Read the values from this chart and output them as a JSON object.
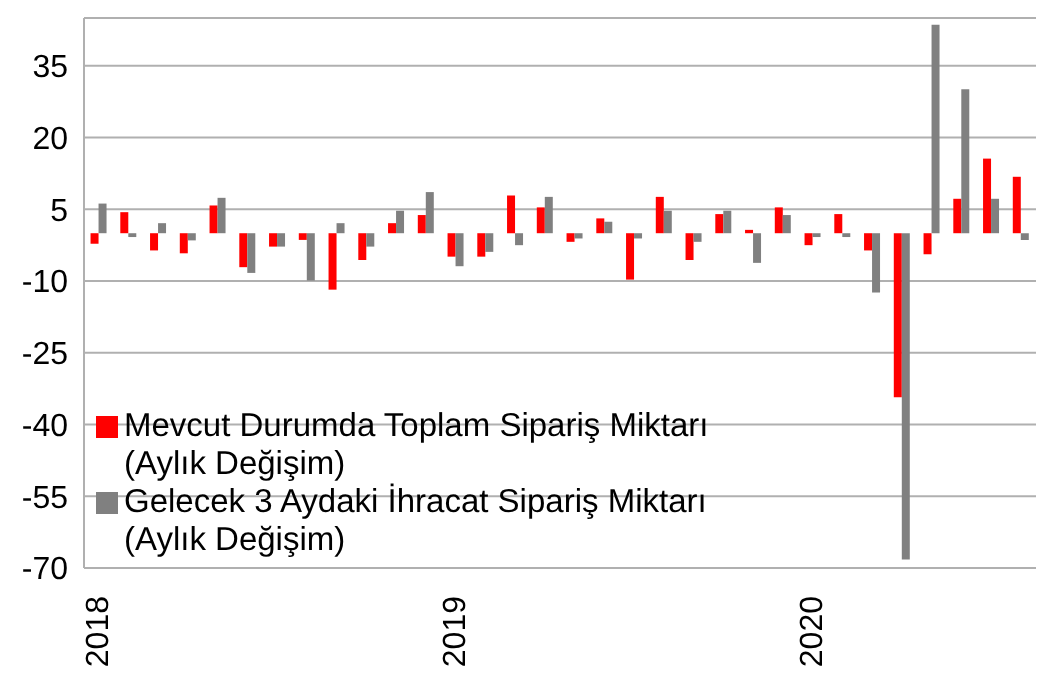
{
  "chart_data": {
    "type": "bar",
    "categories": [
      "2018",
      null,
      null,
      null,
      null,
      null,
      null,
      null,
      null,
      null,
      null,
      null,
      "2019",
      null,
      null,
      null,
      null,
      null,
      null,
      null,
      null,
      null,
      null,
      null,
      "2020",
      null,
      null,
      null,
      null,
      null,
      null,
      null
    ],
    "series": [
      {
        "name": "Mevcut Durumda Toplam Sipariş Miktarı (Aylık Değişim)",
        "color": "#ff0000",
        "values": [
          -2.2,
          4.4,
          -3.6,
          -4.2,
          5.8,
          -7.1,
          -2.8,
          -1.4,
          -11.8,
          -5.6,
          2.1,
          3.8,
          -4.9,
          -4.9,
          7.9,
          5.4,
          -1.8,
          3.1,
          -9.7,
          7.6,
          -5.6,
          4.0,
          0.7,
          5.4,
          -2.5,
          4.0,
          -3.6,
          -34.3,
          -4.4,
          7.2,
          15.6,
          11.8
        ]
      },
      {
        "name": "Gelecek 3 Aydaki İhracat Sipariş Miktarı (Aylık Değişim)",
        "color": "#808080",
        "values": [
          6.2,
          -0.8,
          2.1,
          -1.5,
          7.4,
          -8.3,
          -2.8,
          -9.9,
          2.1,
          -2.8,
          4.7,
          8.6,
          -6.9,
          -3.9,
          -2.5,
          7.6,
          -1.1,
          2.4,
          -1.1,
          4.7,
          -1.8,
          4.7,
          -6.2,
          3.8,
          -0.8,
          -0.8,
          -12.4,
          -68.2,
          43.6,
          30.1,
          7.2,
          -1.4
        ]
      }
    ],
    "ylim": [
      -70,
      45
    ],
    "yticks": [
      -70,
      -55,
      -40,
      -25,
      -10,
      5,
      20,
      35
    ],
    "grid": "y",
    "legend": "bottom left"
  }
}
